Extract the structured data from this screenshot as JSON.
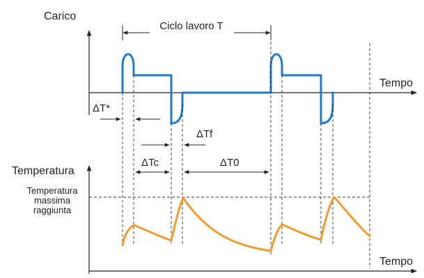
{
  "load_chart": {
    "axis_label": "Carico",
    "time_label": "Tempo",
    "cycle_label": "Ciclo lavoro T",
    "dt_star": "ΔT*",
    "dt_c": "ΔTc",
    "dt_f": "ΔTf",
    "dt_0": "ΔT0"
  },
  "temperature_chart": {
    "axis_label": "Temperatura",
    "time_label": "Tempo",
    "max_temp_line1": "Temperatura",
    "max_temp_line2": "massima",
    "max_temp_line3": "raggiunta"
  },
  "colors": {
    "load_curve": "#1f78c8",
    "temperature_curve": "#f29a2e",
    "axes": "#222222"
  }
}
